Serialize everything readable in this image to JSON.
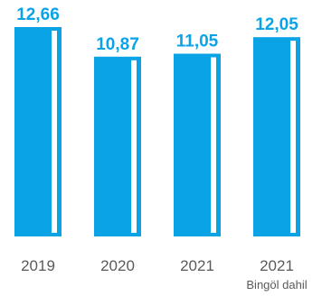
{
  "chart_data": {
    "type": "bar",
    "categories": [
      "2019",
      "2020",
      "2021",
      "2021"
    ],
    "category_sublabels": [
      "",
      "",
      "",
      "Bingöl dahil"
    ],
    "values": [
      12.66,
      10.87,
      11.05,
      12.05
    ],
    "value_labels": [
      "12,66",
      "10,87",
      "11,05",
      "12,05"
    ],
    "ylim": [
      0,
      12.66
    ],
    "grid": false,
    "colors": {
      "bar": "#0aa3e6",
      "bar_highlight": "#ffffff",
      "label": "#0aa3e6",
      "tick": "#5a5a5a"
    }
  }
}
